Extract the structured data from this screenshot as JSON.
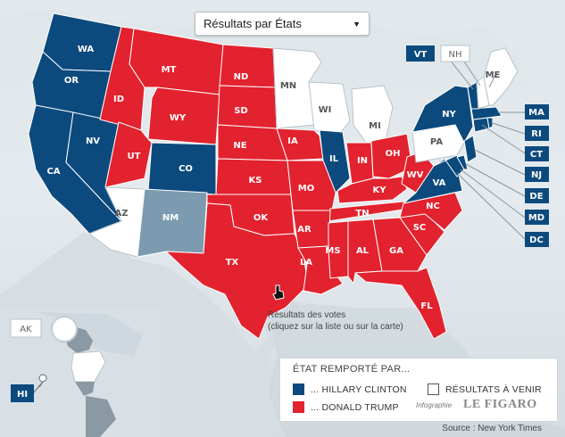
{
  "select": {
    "value": "Résultats par États"
  },
  "states": {
    "wa": "WA",
    "or": "OR",
    "ca": "CA",
    "nv": "NV",
    "id": "ID",
    "mt": "MT",
    "wy": "WY",
    "ut": "UT",
    "co": "CO",
    "az": "AZ",
    "nm": "NM",
    "nd": "ND",
    "sd": "SD",
    "ne": "NE",
    "ks": "KS",
    "ok": "OK",
    "tx": "TX",
    "mn": "MN",
    "wi": "WI",
    "mi": "MI",
    "ia": "IA",
    "il": "IL",
    "mo": "MO",
    "in": "IN",
    "oh": "OH",
    "ky": "KY",
    "wv": "WV",
    "va": "VA",
    "tn": "TN",
    "ar": "AR",
    "la": "LA",
    "ms": "MS",
    "al": "AL",
    "ga": "GA",
    "fl": "FL",
    "sc": "SC",
    "nc": "NC",
    "pa": "PA",
    "ny": "NY",
    "me": "ME",
    "vt": "VT",
    "nh": "NH",
    "ma": "MA",
    "ri": "RI",
    "ct": "CT",
    "nj": "NJ",
    "de": "DE",
    "md": "MD",
    "dc": "DC",
    "ak": "AK",
    "hi": "HI"
  },
  "state_results": {
    "clinton": [
      "WA",
      "OR",
      "CA",
      "NV",
      "CO",
      "IL",
      "VA",
      "NY",
      "VT",
      "MA",
      "RI",
      "CT",
      "NJ",
      "DE",
      "MD",
      "DC",
      "HI"
    ],
    "trump": [
      "ID",
      "MT",
      "WY",
      "UT",
      "ND",
      "SD",
      "NE",
      "KS",
      "OK",
      "TX",
      "IA",
      "MO",
      "IN",
      "OH",
      "KY",
      "WV",
      "TN",
      "AR",
      "LA",
      "MS",
      "AL",
      "GA",
      "FL",
      "SC",
      "NC"
    ],
    "pending": [
      "AZ",
      "MN",
      "WI",
      "MI",
      "PA",
      "NH",
      "ME",
      "AK"
    ],
    "other": [
      "NM"
    ]
  },
  "colors": {
    "clinton": "#0c4a7e",
    "trump": "#e2222e",
    "pending": "#ffffff",
    "other": "#7c9bb0"
  },
  "note": {
    "line1": "Résultats des votes",
    "line2": "(cliquez sur la liste ou sur la carte)"
  },
  "legend": {
    "title": "ÉTAT REMPORTÉ PAR...",
    "clinton": "... HILLARY CLINTON",
    "trump": "... DONALD TRUMP",
    "pending": "RÉSULTATS À VENIR",
    "credit": "Infographie",
    "brand": "LE FIGARO"
  },
  "source": "Source : New York Times"
}
